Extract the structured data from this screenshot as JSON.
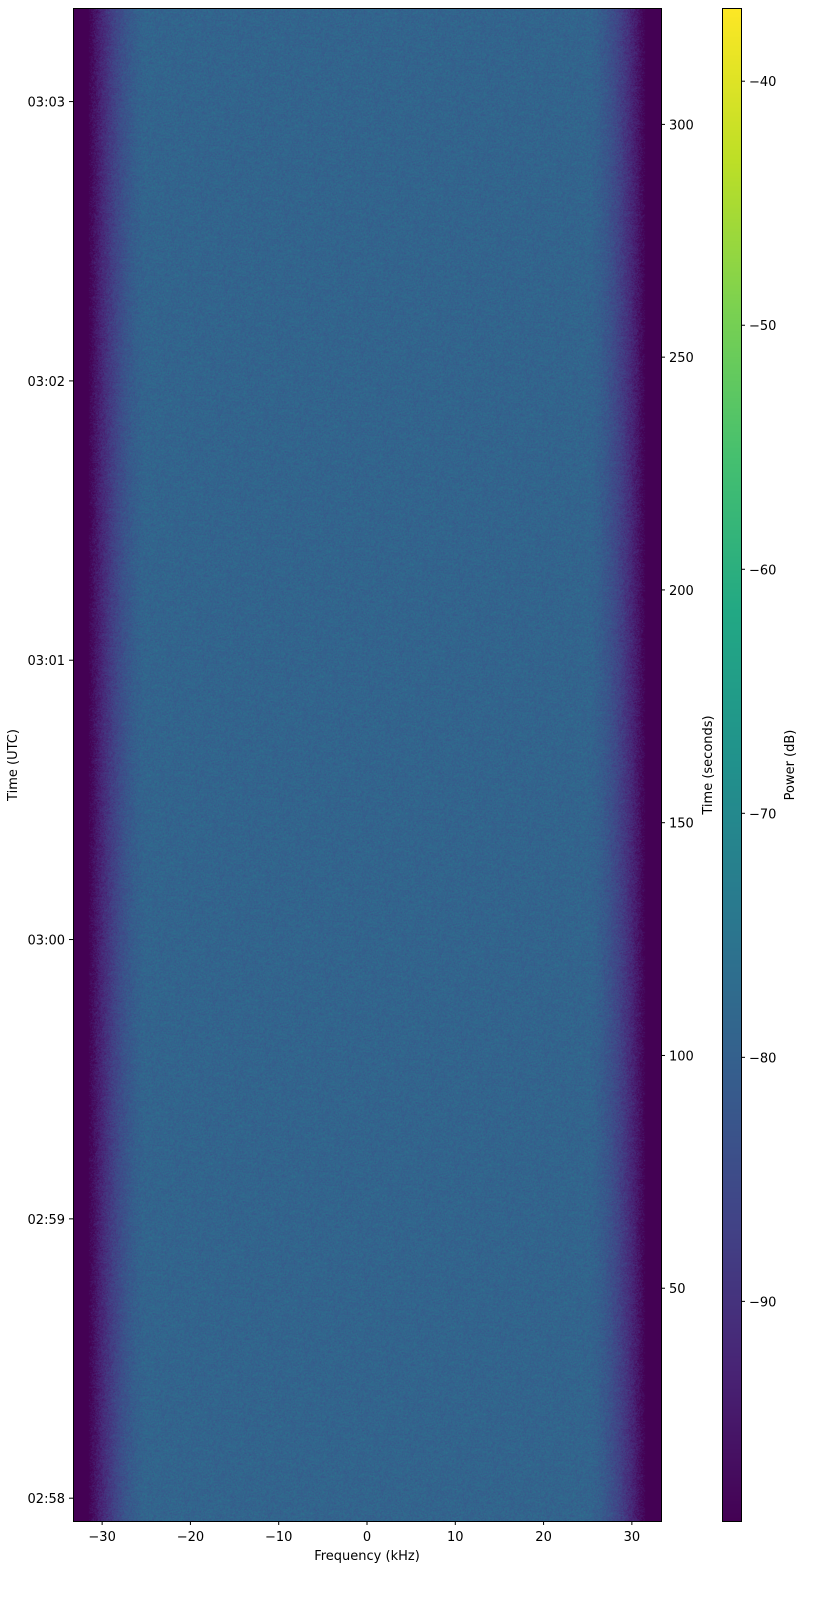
{
  "chart_data": {
    "type": "heatmap",
    "title": "",
    "xlabel": "Frequency (kHz)",
    "ylabel_left": "Time (UTC)",
    "ylabel_right": "Time (seconds)",
    "colorbar_label": "Power (dB)",
    "colormap": "viridis",
    "xlim": [
      -33.3,
      33.3
    ],
    "ylim_seconds": [
      0,
      325
    ],
    "clim": [
      -99,
      -37
    ],
    "x_ticks": [
      -30,
      -20,
      -10,
      0,
      10,
      20,
      30
    ],
    "x_tick_labels": [
      "−30",
      "−20",
      "−10",
      "0",
      "10",
      "20",
      "30"
    ],
    "y_right_ticks": [
      50,
      100,
      150,
      200,
      250,
      300
    ],
    "y_right_tick_labels": [
      "50",
      "100",
      "150",
      "200",
      "250",
      "300"
    ],
    "y_left_ticks_seconds": [
      4.9,
      64.9,
      124.9,
      184.9,
      244.9,
      304.9
    ],
    "y_left_tick_labels": [
      "02:58",
      "02:59",
      "03:00",
      "03:01",
      "03:02",
      "03:03"
    ],
    "colorbar_ticks": [
      -40,
      -50,
      -60,
      -70,
      -80,
      -90
    ],
    "colorbar_tick_labels": [
      "−40",
      "−50",
      "−60",
      "−70",
      "−80",
      "−90"
    ],
    "signal": {
      "noise_floor_db": -79,
      "passband_khz": [
        -25,
        25
      ],
      "band_edge_khz": [
        -31.5,
        31.5
      ],
      "stopband_db": -99
    }
  }
}
